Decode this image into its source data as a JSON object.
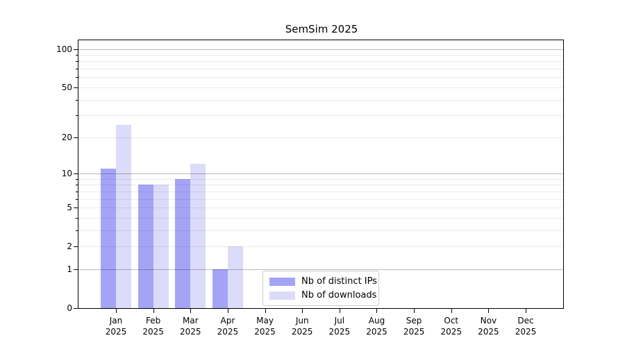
{
  "chart_data": {
    "type": "bar",
    "title": "SemSim 2025",
    "months": [
      "Jan",
      "Feb",
      "Mar",
      "Apr",
      "May",
      "Jun",
      "Jul",
      "Aug",
      "Sep",
      "Oct",
      "Nov",
      "Dec"
    ],
    "year": "2025",
    "series": [
      {
        "name": "Nb of distinct IPs",
        "color": "#a4a4f7",
        "values": [
          11,
          8,
          9,
          1,
          0,
          0,
          0,
          0,
          0,
          0,
          0,
          0
        ]
      },
      {
        "name": "Nb of downloads",
        "color": "#dbdbfa",
        "values": [
          25,
          8,
          12,
          2,
          0,
          0,
          0,
          0,
          0,
          0,
          0,
          0
        ]
      }
    ],
    "yscale": "log1p",
    "ylim": [
      0,
      116
    ],
    "yticks": [
      0,
      1,
      2,
      5,
      10,
      20,
      50,
      100
    ],
    "yticks_minor": [
      3,
      4,
      6,
      7,
      8,
      9,
      30,
      40,
      60,
      70,
      80,
      90
    ],
    "yticks_decade": [
      1,
      10,
      100
    ],
    "grid": "on",
    "legend_position": "lower center-left",
    "colors": {
      "grid_major": "rgba(0,0,0,0.27)",
      "grid_minor": "rgba(0,0,0,0.08)",
      "axis": "#000000",
      "background": "#ffffff"
    }
  }
}
